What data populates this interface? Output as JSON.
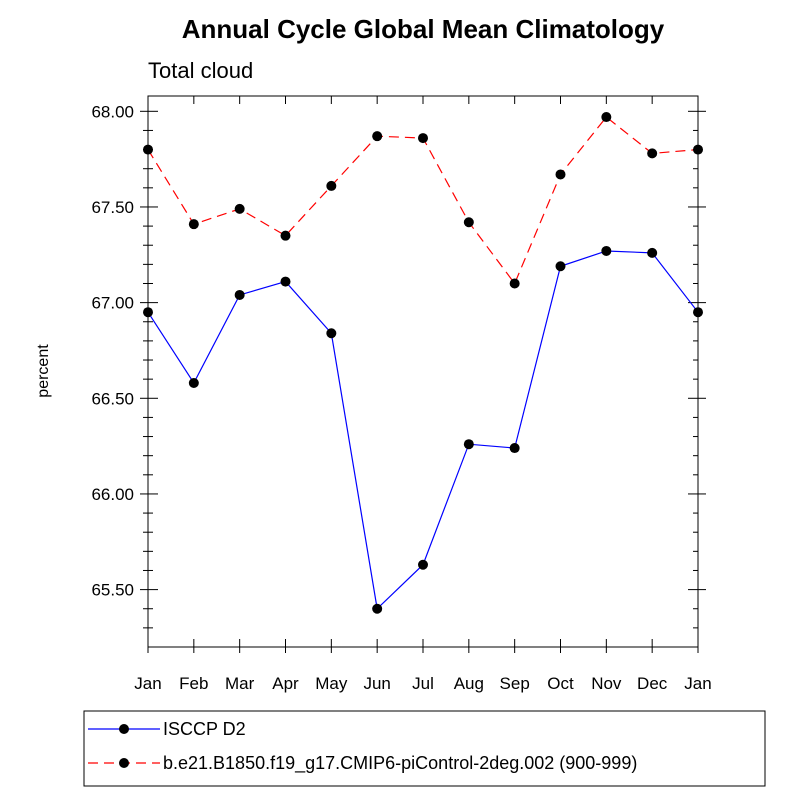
{
  "chart_data": {
    "type": "line",
    "title": "Annual Cycle Global Mean Climatology",
    "subtitle": "Total cloud",
    "xlabel": "",
    "ylabel": "percent",
    "categories": [
      "Jan",
      "Feb",
      "Mar",
      "Apr",
      "May",
      "Jun",
      "Jul",
      "Aug",
      "Sep",
      "Oct",
      "Nov",
      "Dec",
      "Jan"
    ],
    "ylim": [
      65.2,
      68.08
    ],
    "yticks": [
      65.5,
      66.0,
      66.5,
      67.0,
      67.5,
      68.0
    ],
    "ytick_labels": [
      "65.50",
      "66.00",
      "66.50",
      "67.00",
      "67.50",
      "68.00"
    ],
    "series": [
      {
        "name": "ISCCP D2",
        "color": "#0000ff",
        "dash": "solid",
        "values": [
          66.95,
          66.58,
          67.04,
          67.11,
          66.84,
          65.4,
          65.63,
          66.26,
          66.24,
          67.19,
          67.27,
          67.26,
          66.95
        ]
      },
      {
        "name": "b.e21.B1850.f19_g17.CMIP6-piControl-2deg.002 (900-999)",
        "color": "#ff0000",
        "dash": "dashed",
        "values": [
          67.8,
          67.41,
          67.49,
          67.35,
          67.61,
          67.87,
          67.86,
          67.42,
          67.1,
          67.67,
          67.97,
          67.78,
          67.8
        ]
      }
    ],
    "legend_position": "bottom"
  }
}
